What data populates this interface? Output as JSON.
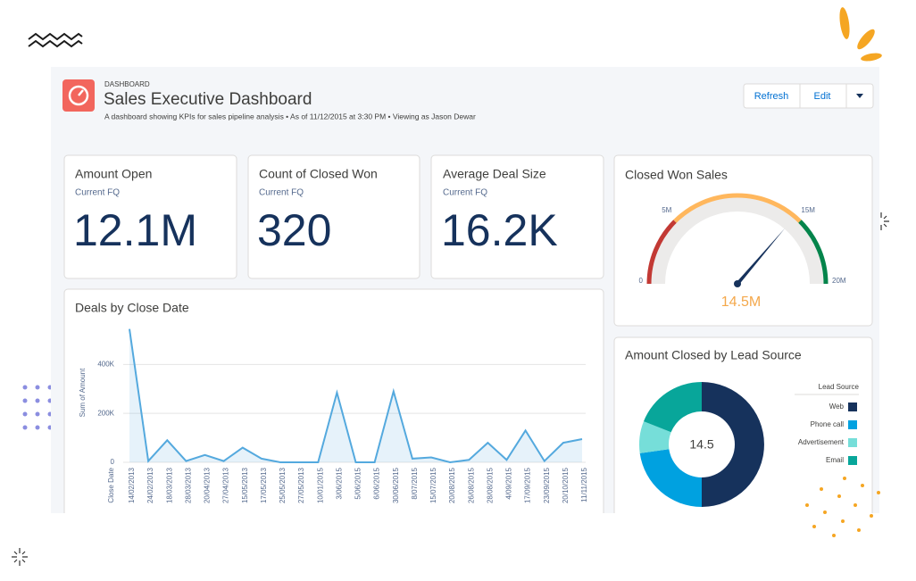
{
  "header": {
    "eyebrow": "DASHBOARD",
    "title": "Sales Executive Dashboard",
    "subtitle": "A dashboard showing KPIs for sales pipeline analysis  • As of 11/12/2015 at 3:30 PM  • Viewing as Jason Dewar",
    "buttons": [
      "Refresh",
      "Edit"
    ]
  },
  "kpis": [
    {
      "title": "Amount Open",
      "period": "Current FQ",
      "value": "12.1M"
    },
    {
      "title": "Count of Closed Won",
      "period": "Current FQ",
      "value": "320"
    },
    {
      "title": "Average Deal Size",
      "period": "Current FQ",
      "value": "16.2K"
    }
  ],
  "chart_data": [
    {
      "type": "line",
      "title": "Deals by Close Date",
      "x_label": "Close Date",
      "y_label": "Sum of Amount",
      "categories": [
        "14/02/2013",
        "24/02/2013",
        "18/03/2013",
        "28/03/2013",
        "20/04/2013",
        "27/04/2013",
        "15/05/2013",
        "17/05/2013",
        "25/05/2013",
        "27/05/2013",
        "10/01/2015",
        "3/06/2015",
        "5/06/2015",
        "6/06/2015",
        "30/06/2015",
        "8/07/2015",
        "15/07/2015",
        "20/08/2015",
        "26/08/2015",
        "28/08/2015",
        "4/09/2015",
        "17/09/2015",
        "23/09/2015",
        "20/10/2015",
        "11/11/2015"
      ],
      "values": [
        545000,
        5000,
        90000,
        5000,
        30000,
        5000,
        60000,
        15000,
        0,
        0,
        0,
        285000,
        0,
        0,
        290000,
        15000,
        20000,
        0,
        10000,
        80000,
        10000,
        130000,
        5000,
        80000,
        95000
      ],
      "color": "#54a9de",
      "ylim": [
        0,
        580000
      ],
      "yticks": [
        0,
        {
          "value": 200000,
          "label": "200K"
        },
        {
          "value": 400000,
          "label": "400K"
        }
      ],
      "grid": true
    },
    {
      "type": "gauge",
      "title": "Closed Won Sales",
      "value": 14.5,
      "value_label": "14.5M",
      "range": [
        0,
        20
      ],
      "ticks": [
        0,
        {
          "value": 5,
          "label": "5M"
        },
        {
          "value": 15,
          "label": "15M"
        },
        {
          "value": 20,
          "label": "20M"
        }
      ],
      "bands": [
        {
          "from": 0,
          "to": 5,
          "color": "#c23934"
        },
        {
          "from": 5,
          "to": 15,
          "color": "#ffb75d"
        },
        {
          "from": 15,
          "to": 20,
          "color": "#04844b"
        }
      ],
      "value_color": "#f4a84b"
    },
    {
      "type": "pie",
      "title": "Amount Closed by Lead Source",
      "legend_title": "Lead Source",
      "center_label": "14.5",
      "categories": [
        "Web",
        "Phone call",
        "Advertisement",
        "Email"
      ],
      "values": [
        7.25,
        3.3,
        1.2,
        2.75
      ],
      "colors": [
        "#16325c",
        "#00a1e0",
        "#76ded9",
        "#08a69a"
      ]
    }
  ]
}
